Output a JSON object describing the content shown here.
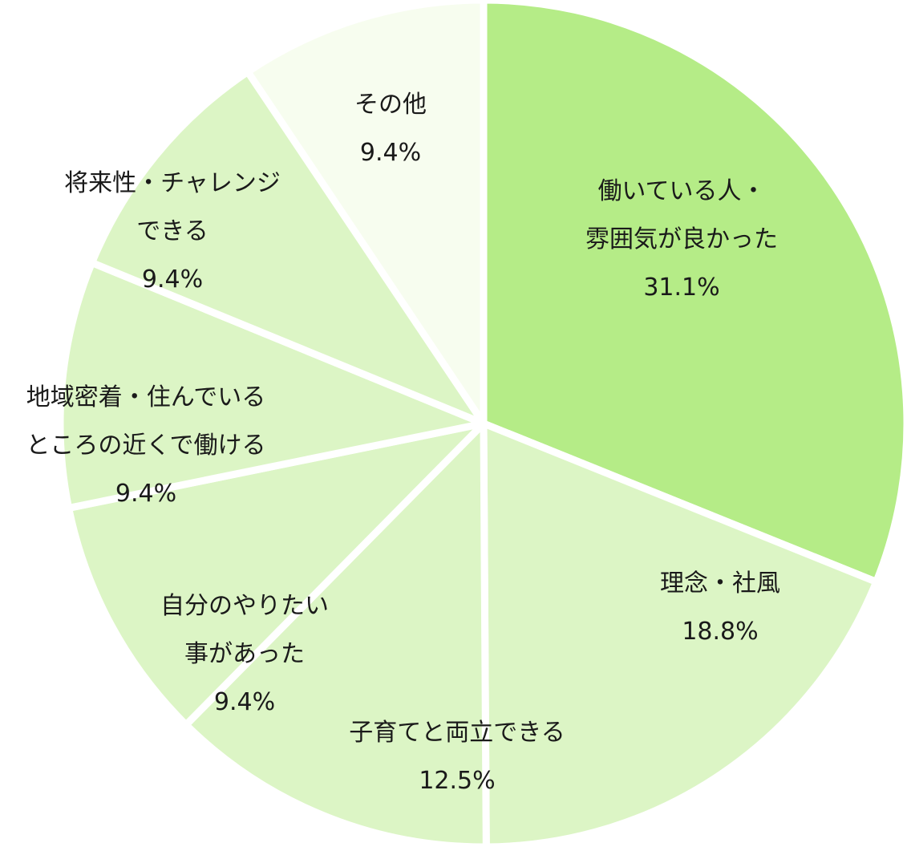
{
  "chart_data": {
    "type": "pie",
    "title": "",
    "start_angle_deg": 0,
    "direction": "clockwise",
    "slices": [
      {
        "label_lines": [
          "働いている人・",
          "雰囲気が良かった"
        ],
        "value": 31.1,
        "value_label": "31.1%",
        "color": "#b5ec87"
      },
      {
        "label_lines": [
          "理念・社風"
        ],
        "value": 18.8,
        "value_label": "18.8%",
        "color": "#dcf5c5"
      },
      {
        "label_lines": [
          "子育てと両立できる"
        ],
        "value": 12.5,
        "value_label": "12.5%",
        "color": "#dcf5c5"
      },
      {
        "label_lines": [
          "自分のやりたい",
          "事があった"
        ],
        "value": 9.4,
        "value_label": "9.4%",
        "color": "#dcf5c5"
      },
      {
        "label_lines": [
          "地域密着・住んでいる",
          "ところの近くで働ける"
        ],
        "value": 9.4,
        "value_label": "9.4%",
        "color": "#dcf5c5"
      },
      {
        "label_lines": [
          "将来性・チャレンジ",
          "できる"
        ],
        "value": 9.4,
        "value_label": "9.4%",
        "color": "#dcf5c5"
      },
      {
        "label_lines": [
          "その他"
        ],
        "value": 9.4,
        "value_label": "9.4%",
        "color": "#f7fdef"
      }
    ],
    "separator_color": "#ffffff",
    "legend": "none"
  }
}
